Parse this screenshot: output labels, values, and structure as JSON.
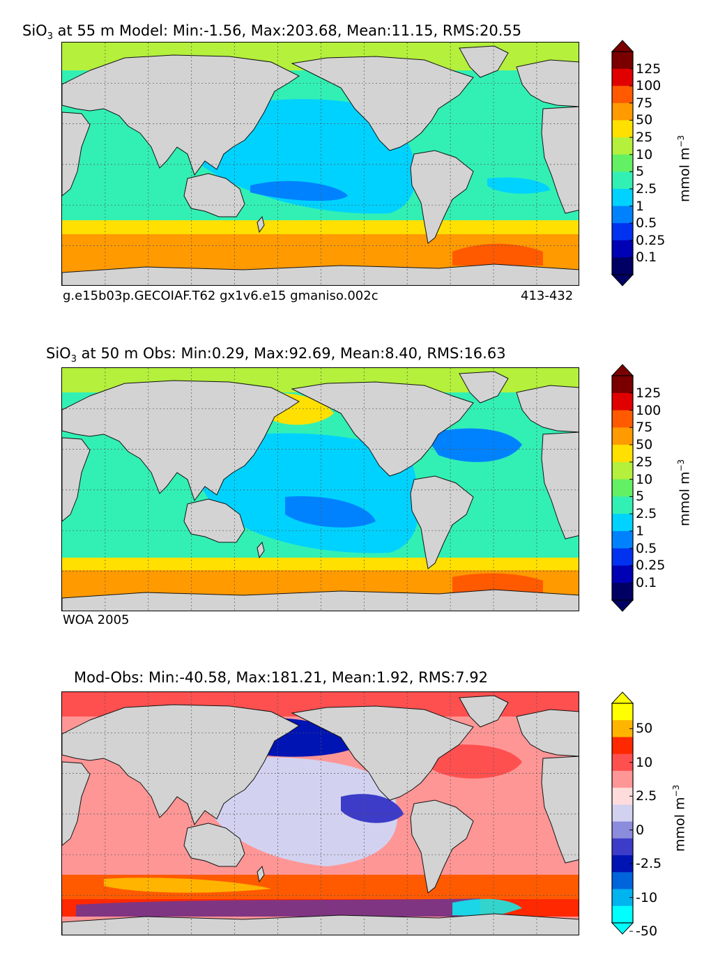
{
  "panels": [
    {
      "title_prefix": "SiO",
      "title_sub": "3",
      "title_rest": " at 55 m Model: Min:-1.56, Max:203.68, Mean:11.15, RMS:20.55",
      "caption_left": "g.e15b03p.GECOIAF.T62 gx1v6.e15 gmaniso.002c",
      "caption_right": "413-432",
      "unit": "mmol m",
      "unit_sup": "−3",
      "ticks": [
        "125",
        "100",
        "75",
        "50",
        "25",
        "10",
        "5",
        "2.5",
        "1",
        "0.5",
        "0.25",
        "0.1"
      ],
      "colors": [
        "#7a0000",
        "#e00000",
        "#ff5a00",
        "#ff9a00",
        "#ffe000",
        "#b4f03c",
        "#64f064",
        "#32f0b4",
        "#00d2ff",
        "#0082ff",
        "#0032f0",
        "#0000b4",
        "#000064"
      ]
    },
    {
      "title_prefix": "SiO",
      "title_sub": "3",
      "title_rest": " at 50 m Obs: Min:0.29, Max:92.69, Mean:8.40, RMS:16.63",
      "caption_left": "WOA 2005",
      "unit": "mmol m",
      "unit_sup": "−3",
      "ticks": [
        "125",
        "100",
        "75",
        "50",
        "25",
        "10",
        "5",
        "2.5",
        "1",
        "0.5",
        "0.25",
        "0.1"
      ],
      "colors": [
        "#7a0000",
        "#e00000",
        "#ff5a00",
        "#ff9a00",
        "#ffe000",
        "#b4f03c",
        "#64f064",
        "#32f0b4",
        "#00d2ff",
        "#0082ff",
        "#0032f0",
        "#0000b4",
        "#000064"
      ]
    },
    {
      "title": "Mod-Obs: Min:-40.58, Max:181.21, Mean:1.92, RMS:7.92",
      "unit": "mmol m",
      "unit_sup": "−3",
      "ticks": [
        "50",
        "10",
        "2.5",
        "0",
        "-2.5",
        "-10",
        "-50"
      ],
      "colors": [
        "#ffff00",
        "#ffb400",
        "#ff2800",
        "#ff5050",
        "#ff9696",
        "#ffdcdc",
        "#d2d2f0",
        "#8c8cdc",
        "#3c3cc8",
        "#0014b4",
        "#0064dc",
        "#00b4f0",
        "#00ffff"
      ]
    }
  ]
}
